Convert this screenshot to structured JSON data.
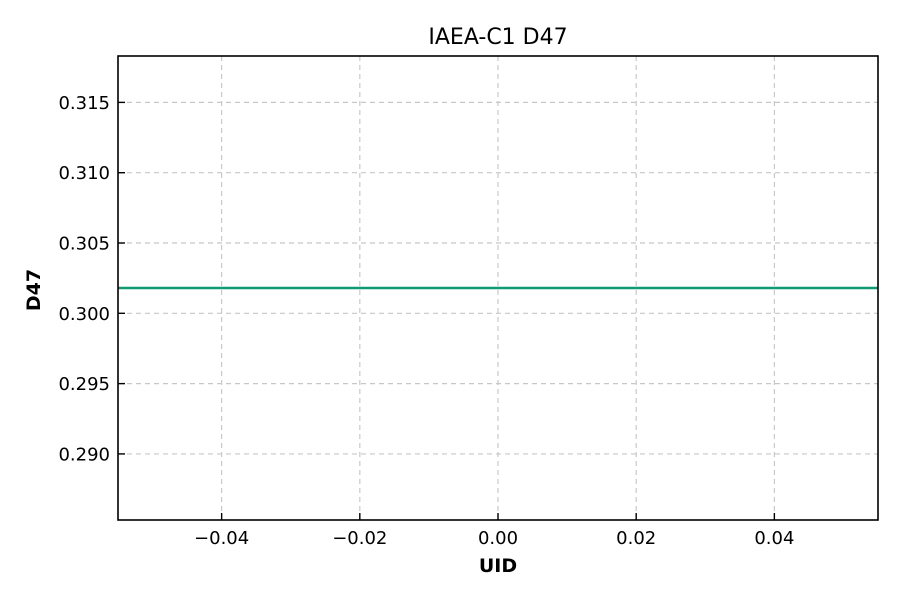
{
  "chart_data": {
    "type": "line",
    "title": "IAEA-C1 D47",
    "xlabel": "UID",
    "ylabel": "D47",
    "xlim": [
      -0.055,
      0.055
    ],
    "ylim": [
      0.2853,
      0.3183
    ],
    "x_ticks": [
      -0.04,
      -0.02,
      0.0,
      0.02,
      0.04
    ],
    "x_tick_labels": [
      "−0.04",
      "−0.02",
      "0.00",
      "0.02",
      "0.04"
    ],
    "y_ticks": [
      0.29,
      0.295,
      0.3,
      0.305,
      0.31,
      0.315
    ],
    "y_tick_labels": [
      "0.290",
      "0.295",
      "0.300",
      "0.305",
      "0.310",
      "0.315"
    ],
    "grid": true,
    "series": [
      {
        "color": "#0f9a73",
        "x": [
          -0.055,
          0.055
        ],
        "y": [
          0.3018,
          0.3018
        ]
      }
    ]
  }
}
